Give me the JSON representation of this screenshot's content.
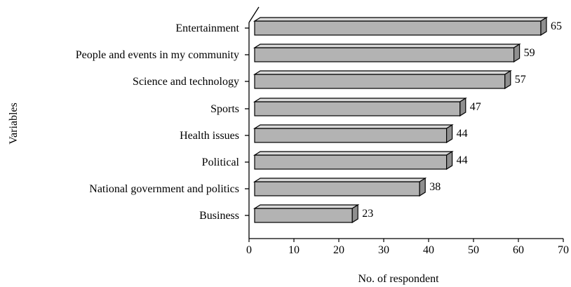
{
  "chart_data": {
    "type": "bar",
    "orientation": "horizontal",
    "style": "3d",
    "categories": [
      "Entertainment",
      "People and events in my community",
      "Science and technology",
      "Sports",
      "Health issues",
      "Political",
      "National government and politics",
      "Business"
    ],
    "values": [
      65,
      59,
      57,
      47,
      44,
      44,
      38,
      23
    ],
    "data_labels": [
      "65",
      "59",
      "57",
      "47",
      "44",
      "44",
      "38",
      "23"
    ],
    "xlabel": "No. of respondent",
    "ylabel": "Variables",
    "xlim": [
      0,
      70
    ],
    "x_ticks": [
      "0",
      "10",
      "20",
      "30",
      "40",
      "50",
      "60",
      "70"
    ],
    "grid": false,
    "legend": "none",
    "colors": {
      "bar_front": "#b3b3b3",
      "bar_top": "#d9d9d9",
      "bar_side": "#8f8f8f",
      "outline": "#000000"
    }
  }
}
